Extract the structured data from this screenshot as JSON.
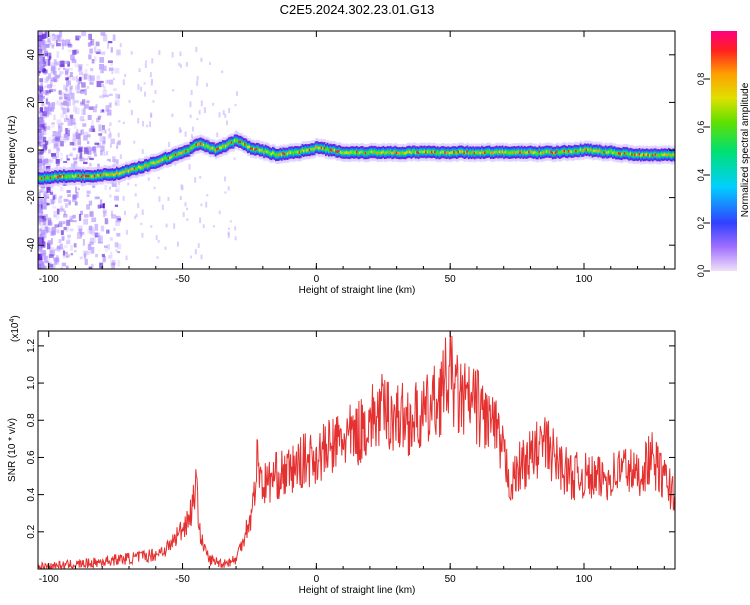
{
  "figure": {
    "title": "C2E5.2024.302.23.01.G13"
  },
  "colors": {
    "snr_line": "#e53030",
    "background": "#ffffff",
    "axis": "#000000"
  },
  "chart_data": [
    {
      "type": "heatmap",
      "xlabel": "Height of straight line (km)",
      "ylabel": "Frequency (Hz)",
      "xlim": [
        -104,
        134
      ],
      "ylim": [
        -50,
        50
      ],
      "xticks": [
        -100,
        -50,
        0,
        50,
        100
      ],
      "yticks": [
        -40,
        -20,
        0,
        20,
        40
      ],
      "colorbar": {
        "label": "Normalized spectral amplitude",
        "range": [
          0,
          1
        ],
        "ticks": [
          0.0,
          0.2,
          0.4,
          0.6,
          0.8
        ]
      },
      "ridge": {
        "description_values": "dominant frequency (Hz) vs height (km)",
        "x": [
          -104,
          -95,
          -85,
          -75,
          -65,
          -55,
          -48,
          -44,
          -38,
          -30,
          -25,
          -15,
          -8,
          0,
          10,
          20,
          40,
          60,
          80,
          90,
          100,
          110,
          120,
          134
        ],
        "y": [
          -12,
          -11,
          -11,
          -10,
          -7,
          -3,
          0,
          3,
          0,
          4,
          1,
          -2,
          -1,
          1,
          -1,
          -1,
          -1,
          -1,
          -1,
          -1,
          0,
          -1,
          -2,
          -2
        ]
      }
    },
    {
      "type": "line",
      "xlabel": "Height of straight line (km)",
      "ylabel": "SNR (10 * v/v)",
      "y_multiplier": "(x10",
      "y_multiplier_exp": "4",
      "y_multiplier_close": ")",
      "xlim": [
        -104,
        134
      ],
      "ylim": [
        0,
        1.28
      ],
      "xticks": [
        -100,
        -50,
        0,
        50,
        100
      ],
      "yticks": [
        0.2,
        0.4,
        0.6,
        0.8,
        1.0,
        1.2
      ],
      "series": [
        {
          "color": "#e53030",
          "x": [
            -104,
            -95,
            -85,
            -75,
            -68,
            -60,
            -55,
            -50,
            -47,
            -45,
            -43,
            -40,
            -35,
            -30,
            -27,
            -24,
            -22,
            -20,
            -15,
            -10,
            -5,
            0,
            5,
            10,
            15,
            20,
            25,
            30,
            35,
            40,
            45,
            48,
            50,
            53,
            56,
            60,
            63,
            66,
            70,
            73,
            76,
            80,
            85,
            90,
            95,
            100,
            105,
            110,
            115,
            120,
            125,
            130,
            134
          ],
          "y": [
            0.01,
            0.02,
            0.03,
            0.05,
            0.06,
            0.08,
            0.12,
            0.22,
            0.3,
            0.45,
            0.15,
            0.05,
            0.03,
            0.05,
            0.18,
            0.3,
            0.6,
            0.45,
            0.5,
            0.52,
            0.58,
            0.6,
            0.65,
            0.7,
            0.72,
            0.8,
            0.85,
            0.82,
            0.8,
            0.82,
            0.9,
            1.0,
            1.05,
            0.92,
            0.9,
            0.88,
            0.82,
            0.78,
            0.6,
            0.45,
            0.55,
            0.6,
            0.68,
            0.58,
            0.5,
            0.5,
            0.48,
            0.5,
            0.55,
            0.5,
            0.6,
            0.48,
            0.4
          ]
        }
      ]
    }
  ]
}
